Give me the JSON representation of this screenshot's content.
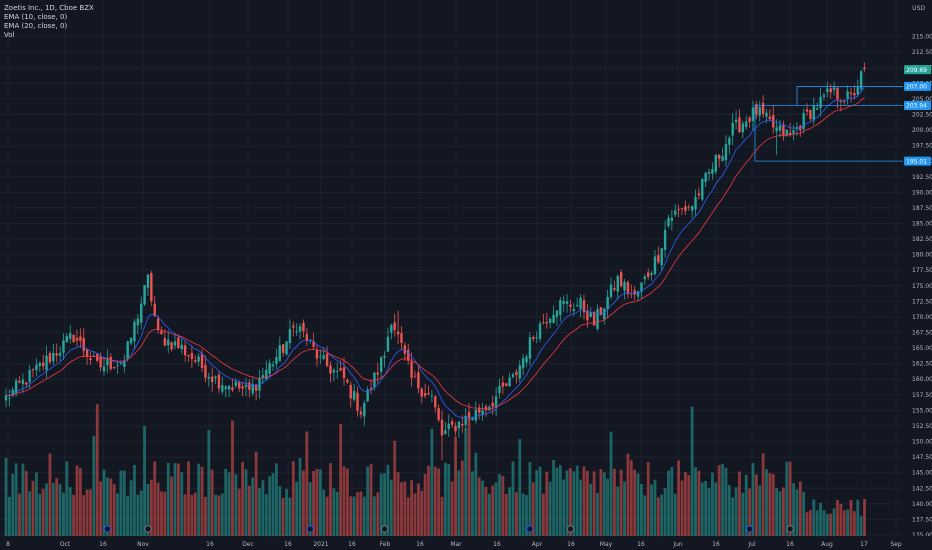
{
  "legend": {
    "title": "Zoetis Inc., 1D, Cboe BZX",
    "ema10": "EMA (10, close, 0)",
    "ema20": "EMA (20, close, 0)",
    "vol": "Vol"
  },
  "unit": "USD",
  "colors": {
    "background": "#131722",
    "grid": "#1e222d",
    "up": "#26a69a",
    "down": "#ef5350",
    "ema10": "#2962ff",
    "ema20": "#f23645",
    "box": "#2196f3"
  },
  "chart_data": {
    "type": "candlestick",
    "title": "Zoetis Inc., 1D, Cboe BZX",
    "ylim": [
      135.0,
      217.5
    ],
    "y_ticks": [
      "215.00",
      "212.50",
      "210.00",
      "207.50",
      "205.00",
      "202.50",
      "200.00",
      "197.50",
      "195.00",
      "192.50",
      "190.00",
      "187.50",
      "185.00",
      "182.50",
      "180.00",
      "177.50",
      "175.00",
      "172.50",
      "170.00",
      "167.50",
      "165.00",
      "162.50",
      "160.00",
      "157.50",
      "155.00",
      "152.50",
      "150.00",
      "147.50",
      "145.00",
      "142.50",
      "140.00",
      "137.50",
      "135.00"
    ],
    "x_ticks": [
      "8",
      "Oct",
      "16",
      "Nov",
      "16",
      "Dec",
      "16",
      "2021",
      "16",
      "Feb",
      "16",
      "Mar",
      "16",
      "Apr",
      "16",
      "May",
      "16",
      "Jun",
      "16",
      "Jul",
      "16",
      "Aug",
      "17",
      "Sep"
    ],
    "price_tags": [
      {
        "value": 209.69,
        "label": "209.69",
        "kind": "last"
      },
      {
        "value": 207.0,
        "label": "207.00",
        "kind": "level"
      },
      {
        "value": 203.94,
        "label": "203.94",
        "kind": "level"
      },
      {
        "value": 195.01,
        "label": "195.01",
        "kind": "level"
      }
    ],
    "anchors": [
      {
        "i": 0,
        "p": 157
      },
      {
        "i": 10,
        "p": 162
      },
      {
        "i": 20,
        "p": 167
      },
      {
        "i": 27,
        "p": 162
      },
      {
        "i": 35,
        "p": 163
      },
      {
        "i": 42,
        "p": 176
      },
      {
        "i": 45,
        "p": 167
      },
      {
        "i": 52,
        "p": 165
      },
      {
        "i": 62,
        "p": 160
      },
      {
        "i": 72,
        "p": 158
      },
      {
        "i": 82,
        "p": 165
      },
      {
        "i": 86,
        "p": 169
      },
      {
        "i": 93,
        "p": 163
      },
      {
        "i": 100,
        "p": 160
      },
      {
        "i": 105,
        "p": 155
      },
      {
        "i": 112,
        "p": 164
      },
      {
        "i": 114,
        "p": 170
      },
      {
        "i": 120,
        "p": 160
      },
      {
        "i": 126,
        "p": 157
      },
      {
        "i": 129,
        "p": 151
      },
      {
        "i": 134,
        "p": 153
      },
      {
        "i": 143,
        "p": 156
      },
      {
        "i": 150,
        "p": 160
      },
      {
        "i": 157,
        "p": 168
      },
      {
        "i": 163,
        "p": 172
      },
      {
        "i": 170,
        "p": 172
      },
      {
        "i": 174,
        "p": 169
      },
      {
        "i": 181,
        "p": 176
      },
      {
        "i": 186,
        "p": 173
      },
      {
        "i": 193,
        "p": 180
      },
      {
        "i": 196,
        "p": 186
      },
      {
        "i": 203,
        "p": 188
      },
      {
        "i": 208,
        "p": 193
      },
      {
        "i": 215,
        "p": 200
      },
      {
        "i": 222,
        "p": 203
      },
      {
        "i": 228,
        "p": 200
      },
      {
        "i": 232,
        "p": 199
      },
      {
        "i": 238,
        "p": 203
      },
      {
        "i": 244,
        "p": 206
      },
      {
        "i": 250,
        "p": 205
      },
      {
        "i": 254,
        "p": 209.69
      }
    ]
  },
  "events": [
    {
      "i": 30,
      "type": "dividend"
    },
    {
      "i": 42,
      "type": "earnings"
    },
    {
      "i": 90,
      "type": "dividend"
    },
    {
      "i": 112,
      "type": "earnings"
    },
    {
      "i": 155,
      "type": "dividend"
    },
    {
      "i": 167,
      "type": "earnings"
    },
    {
      "i": 220,
      "type": "dividend"
    },
    {
      "i": 232,
      "type": "earnings"
    }
  ]
}
